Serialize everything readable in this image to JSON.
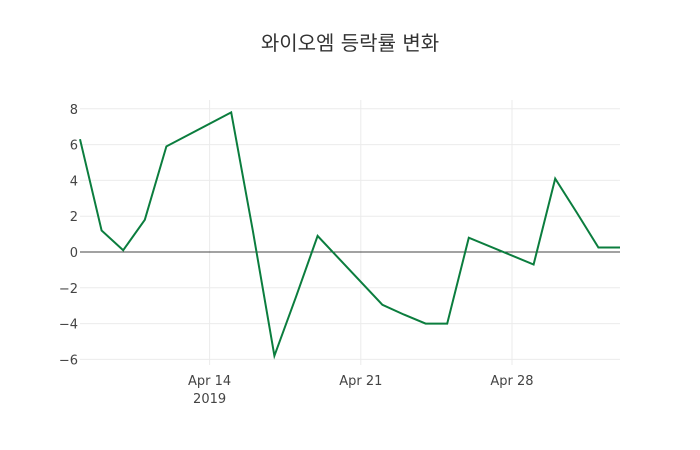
{
  "chart_data": {
    "type": "line",
    "title": "와이오엠 등락률 변화",
    "xlabel": "",
    "ylabel": "",
    "x": [
      "2019-04-08",
      "2019-04-09",
      "2019-04-10",
      "2019-04-11",
      "2019-04-12",
      "2019-04-15",
      "2019-04-16",
      "2019-04-17",
      "2019-04-18",
      "2019-04-19",
      "2019-04-22",
      "2019-04-23",
      "2019-04-24",
      "2019-04-25",
      "2019-04-26",
      "2019-04-29",
      "2019-04-30",
      "2019-05-01",
      "2019-05-02",
      "2019-05-03"
    ],
    "series": [
      {
        "name": "등락률",
        "color": "#0b7d3e",
        "values": [
          6.3,
          1.2,
          0.1,
          1.8,
          5.9,
          7.8,
          1.2,
          -5.8,
          -2.5,
          0.9,
          -2.95,
          -3.5,
          -4.0,
          -4.0,
          0.8,
          -0.7,
          4.1,
          2.2,
          0.25,
          0.25
        ]
      }
    ],
    "ylim": [
      -6.5,
      8.5
    ],
    "yticks": [
      -6,
      -4,
      -2,
      0,
      2,
      4,
      6,
      8
    ],
    "ytick_labels": [
      "−6",
      "−4",
      "−2",
      "0",
      "2",
      "4",
      "6",
      "8"
    ],
    "xticks": [
      {
        "date": "2019-04-14",
        "label": "Apr 14",
        "sublabel": "2019"
      },
      {
        "date": "2019-04-21",
        "label": "Apr 21",
        "sublabel": ""
      },
      {
        "date": "2019-04-28",
        "label": "Apr 28",
        "sublabel": ""
      }
    ],
    "grid": true,
    "zeroline": true,
    "legend": "none"
  }
}
